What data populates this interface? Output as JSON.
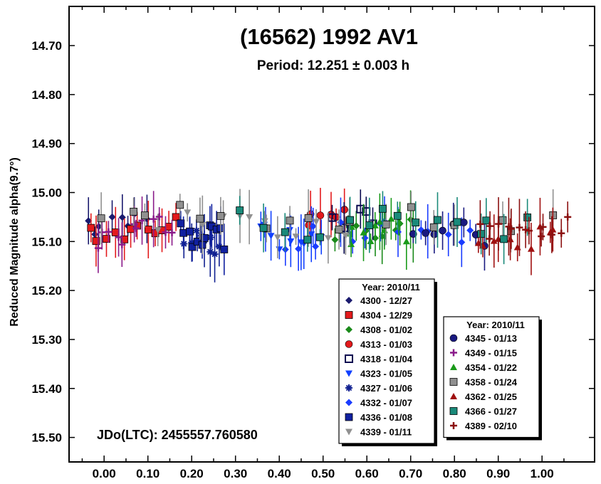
{
  "chart_data": {
    "type": "scatter",
    "title": "(16562) 1992 AV1",
    "subtitle": "Period: 12.251 ± 0.003 h",
    "ylabel": "Reduced Magnitude alpha(9.7°)",
    "xlabel": "",
    "annotation": "JDo(LTC): 2455557.760580",
    "xlim": [
      -0.08,
      1.12
    ],
    "ylim": [
      14.62,
      15.55
    ],
    "y_inverted": true,
    "grid": false,
    "x_ticks": [
      "0.00",
      "0.10",
      "0.20",
      "0.30",
      "0.40",
      "0.50",
      "0.60",
      "0.70",
      "0.80",
      "0.90",
      "1.00"
    ],
    "x_tick_values": [
      0.0,
      0.1,
      0.2,
      0.3,
      0.4,
      0.5,
      0.6,
      0.7,
      0.8,
      0.9,
      1.0
    ],
    "y_ticks": [
      "14.70",
      "14.80",
      "14.90",
      "15.00",
      "15.10",
      "15.20",
      "15.30",
      "15.40",
      "15.50"
    ],
    "y_tick_values": [
      14.7,
      14.8,
      14.9,
      15.0,
      15.1,
      15.2,
      15.3,
      15.4,
      15.5
    ],
    "legends": [
      {
        "title": "Year: 2010/11",
        "placement": "bottom-center",
        "entries": [
          {
            "label": "4300 - 12/27",
            "marker": "diamond",
            "color": "#1a1a6e"
          },
          {
            "label": "4304 - 12/29",
            "marker": "square",
            "color": "#e31a1c"
          },
          {
            "label": "4308 - 01/02",
            "marker": "diamond",
            "color": "#1a8a1a"
          },
          {
            "label": "4313 - 01/03",
            "marker": "circle",
            "color": "#e31a1c"
          },
          {
            "label": "4318 - 01/04",
            "marker": "square-open",
            "color": "#0a0a50"
          },
          {
            "label": "4323 - 01/05",
            "marker": "triangle-down",
            "color": "#1040ff"
          },
          {
            "label": "4327 - 01/06",
            "marker": "asterisk",
            "color": "#102090"
          },
          {
            "label": "4332 - 01/07",
            "marker": "diamond",
            "color": "#1a3cff"
          },
          {
            "label": "4336 - 01/08",
            "marker": "square",
            "color": "#1020a0"
          },
          {
            "label": "4339 - 01/11",
            "marker": "triangle-down",
            "color": "#909090"
          }
        ]
      },
      {
        "title": "Year: 2010/11",
        "placement": "bottom-right",
        "entries": [
          {
            "label": "4345 - 01/13",
            "marker": "circle",
            "color": "#1a1a80"
          },
          {
            "label": "4349 - 01/15",
            "marker": "plus",
            "color": "#8a1a8a"
          },
          {
            "label": "4354 - 01/22",
            "marker": "triangle-up",
            "color": "#1a9a1a"
          },
          {
            "label": "4358 - 01/24",
            "marker": "square",
            "color": "#909090"
          },
          {
            "label": "4362 - 01/25",
            "marker": "triangle-up",
            "color": "#a01010"
          },
          {
            "label": "4366 - 01/27",
            "marker": "square",
            "color": "#1a8a7a"
          },
          {
            "label": "4389 - 02/10",
            "marker": "plus",
            "color": "#8b1010"
          }
        ]
      }
    ],
    "series_groups": [
      {
        "name": "4300 - 12/27",
        "x_range": [
          -0.05,
          0.1
        ],
        "y_center": 15.06,
        "n": 8
      },
      {
        "name": "4304 - 12/29",
        "x_range": [
          -0.04,
          0.18
        ],
        "y_center": 15.07,
        "n": 12
      },
      {
        "name": "4308 - 01/02",
        "x_range": [
          0.52,
          0.72
        ],
        "y_center": 15.09,
        "n": 12
      },
      {
        "name": "4313 - 01/03",
        "x_range": [
          0.45,
          0.56
        ],
        "y_center": 15.05,
        "n": 6
      },
      {
        "name": "4318 - 01/04",
        "x_range": [
          0.52,
          0.62
        ],
        "y_center": 15.05,
        "n": 6
      },
      {
        "name": "4323 - 01/05",
        "x_range": [
          0.35,
          0.5
        ],
        "y_center": 15.08,
        "n": 10
      },
      {
        "name": "4327 - 01/06",
        "x_range": [
          0.18,
          0.27
        ],
        "y_center": 15.11,
        "n": 10
      },
      {
        "name": "4332 - 01/07",
        "x_range": [
          0.36,
          0.85
        ],
        "y_center": 15.08,
        "n": 16
      },
      {
        "name": "4336 - 01/08",
        "x_range": [
          0.17,
          0.28
        ],
        "y_center": 15.1,
        "n": 12
      },
      {
        "name": "4339 - 01/11",
        "x_range": [
          0.12,
          0.58
        ],
        "y_center": 15.07,
        "n": 12
      },
      {
        "name": "4345 - 01/13",
        "x_range": [
          0.7,
          0.88
        ],
        "y_center": 15.08,
        "n": 8
      },
      {
        "name": "4349 - 01/15",
        "x_range": [
          -0.02,
          0.16
        ],
        "y_center": 15.08,
        "n": 12
      },
      {
        "name": "4354 - 01/22",
        "x_range": [
          0.55,
          0.7
        ],
        "y_center": 15.09,
        "n": 10
      },
      {
        "name": "4358 - 01/24",
        "x_range": [
          -0.05,
          1.04
        ],
        "y_center": 15.06,
        "n": 18
      },
      {
        "name": "4362 - 01/25",
        "x_range": [
          0.84,
          1.04
        ],
        "y_center": 15.08,
        "n": 10
      },
      {
        "name": "4366 - 01/27",
        "x_range": [
          0.3,
          1.0
        ],
        "y_center": 15.06,
        "n": 16
      },
      {
        "name": "4389 - 02/10",
        "x_range": [
          0.85,
          1.06
        ],
        "y_center": 15.07,
        "n": 14
      }
    ]
  }
}
